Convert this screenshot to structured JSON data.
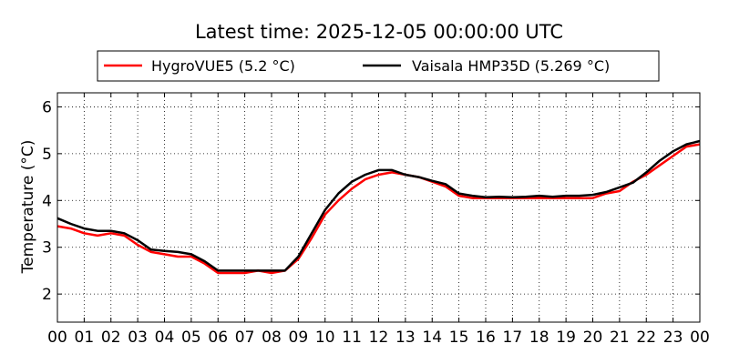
{
  "chart_data": {
    "type": "line",
    "title": "Latest time: 2025-12-05 00:00:00 UTC",
    "xlabel": "",
    "ylabel": "Temperature (°C)",
    "xlim": [
      0,
      24
    ],
    "ylim": [
      1.4,
      6.3
    ],
    "xticks": [
      "00",
      "01",
      "02",
      "03",
      "04",
      "05",
      "06",
      "07",
      "08",
      "09",
      "10",
      "11",
      "12",
      "13",
      "14",
      "15",
      "16",
      "17",
      "18",
      "19",
      "20",
      "21",
      "22",
      "23",
      "00"
    ],
    "yticks": [
      2,
      3,
      4,
      5,
      6
    ],
    "grid": true,
    "legend_position": "top-center",
    "series": [
      {
        "name": "HygroVUE5 (5.2 °C)",
        "color": "#ff0000",
        "x": [
          0,
          0.5,
          1,
          1.5,
          2,
          2.5,
          3,
          3.5,
          4,
          4.5,
          5,
          5.5,
          6,
          6.5,
          7,
          7.5,
          8,
          8.5,
          9,
          9.5,
          10,
          10.5,
          11,
          11.5,
          12,
          12.5,
          13,
          13.5,
          14,
          14.5,
          15,
          15.5,
          16,
          16.5,
          17,
          17.5,
          18,
          18.5,
          19,
          19.5,
          20,
          20.5,
          21,
          21.5,
          22,
          22.5,
          23,
          23.5,
          24
        ],
        "values": [
          3.45,
          3.4,
          3.3,
          3.25,
          3.3,
          3.25,
          3.05,
          2.9,
          2.85,
          2.8,
          2.8,
          2.65,
          2.45,
          2.45,
          2.45,
          2.5,
          2.45,
          2.5,
          2.75,
          3.2,
          3.7,
          4.0,
          4.25,
          4.45,
          4.55,
          4.6,
          4.55,
          4.5,
          4.4,
          4.3,
          4.1,
          4.05,
          4.05,
          4.05,
          4.05,
          4.05,
          4.05,
          4.05,
          4.05,
          4.05,
          4.05,
          4.15,
          4.2,
          4.4,
          4.55,
          4.75,
          4.95,
          5.15,
          5.2
        ]
      },
      {
        "name": "Vaisala HMP35D (5.269 °C)",
        "color": "#000000",
        "x": [
          0,
          0.5,
          1,
          1.5,
          2,
          2.5,
          3,
          3.5,
          4,
          4.5,
          5,
          5.5,
          6,
          6.5,
          7,
          7.5,
          8,
          8.5,
          9,
          9.5,
          10,
          10.5,
          11,
          11.5,
          12,
          12.5,
          13,
          13.5,
          14,
          14.5,
          15,
          15.5,
          16,
          16.5,
          17,
          17.5,
          18,
          18.5,
          19,
          19.5,
          20,
          20.5,
          21,
          21.5,
          22,
          22.5,
          23,
          23.5,
          24
        ],
        "values": [
          3.62,
          3.5,
          3.4,
          3.35,
          3.35,
          3.3,
          3.15,
          2.95,
          2.92,
          2.9,
          2.85,
          2.7,
          2.5,
          2.5,
          2.5,
          2.5,
          2.5,
          2.5,
          2.8,
          3.3,
          3.8,
          4.15,
          4.4,
          4.55,
          4.65,
          4.65,
          4.55,
          4.5,
          4.42,
          4.35,
          4.15,
          4.1,
          4.07,
          4.08,
          4.07,
          4.08,
          4.1,
          4.08,
          4.1,
          4.1,
          4.12,
          4.18,
          4.28,
          4.38,
          4.6,
          4.85,
          5.05,
          5.2,
          5.269
        ]
      }
    ]
  }
}
